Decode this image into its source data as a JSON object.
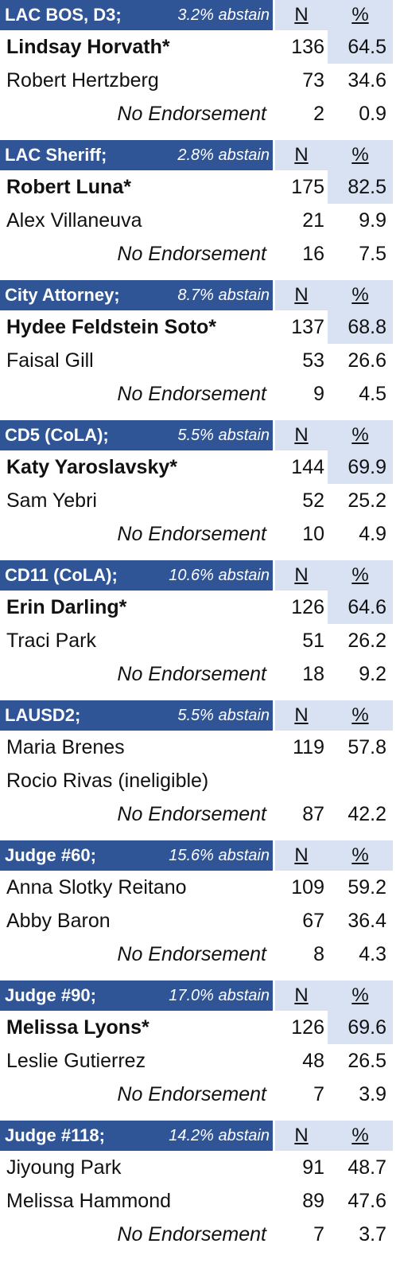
{
  "races": [
    {
      "title": "LAC BOS, D3;",
      "abstain": "3.2% abstain",
      "n_header": "N",
      "pct_header": "%",
      "rows": [
        {
          "name": "Lindsay Horvath*",
          "n": 136,
          "pct": 64.5,
          "bold": true,
          "highlight": true
        },
        {
          "name": "Robert Hertzberg",
          "n": 73,
          "pct": 34.6
        },
        {
          "name": "No Endorsement",
          "n": 2,
          "pct": 0.9,
          "italic": true
        }
      ]
    },
    {
      "title": "LAC Sheriff;",
      "abstain": "2.8% abstain",
      "n_header": "N",
      "pct_header": "%",
      "rows": [
        {
          "name": "Robert Luna*",
          "n": 175,
          "pct": 82.5,
          "bold": true,
          "highlight": true
        },
        {
          "name": "Alex Villaneuva",
          "n": 21,
          "pct": 9.9
        },
        {
          "name": "No Endorsement",
          "n": 16,
          "pct": 7.5,
          "italic": true
        }
      ]
    },
    {
      "title": "City Attorney;",
      "abstain": "8.7% abstain",
      "n_header": "N",
      "pct_header": "%",
      "rows": [
        {
          "name": "Hydee Feldstein Soto*",
          "n": 137,
          "pct": 68.8,
          "bold": true,
          "highlight": true
        },
        {
          "name": "Faisal Gill",
          "n": 53,
          "pct": 26.6
        },
        {
          "name": "No Endorsement",
          "n": 9,
          "pct": 4.5,
          "italic": true
        }
      ]
    },
    {
      "title": "CD5 (CoLA);",
      "abstain": "5.5% abstain",
      "n_header": "N",
      "pct_header": "%",
      "rows": [
        {
          "name": "Katy Yaroslavsky*",
          "n": 144,
          "pct": 69.9,
          "bold": true,
          "highlight": true
        },
        {
          "name": "Sam Yebri",
          "n": 52,
          "pct": 25.2
        },
        {
          "name": "No Endorsement",
          "n": 10,
          "pct": 4.9,
          "italic": true
        }
      ]
    },
    {
      "title": "CD11 (CoLA);",
      "abstain": "10.6% abstain",
      "n_header": "N",
      "pct_header": "%",
      "rows": [
        {
          "name": "Erin Darling*",
          "n": 126,
          "pct": 64.6,
          "bold": true,
          "highlight": true
        },
        {
          "name": "Traci Park",
          "n": 51,
          "pct": 26.2
        },
        {
          "name": "No Endorsement",
          "n": 18,
          "pct": 9.2,
          "italic": true
        }
      ]
    },
    {
      "title": "LAUSD2;",
      "abstain": "5.5% abstain",
      "n_header": "N",
      "pct_header": "%",
      "rows": [
        {
          "name": "Maria Brenes",
          "n": 119,
          "pct": 57.8
        },
        {
          "name": "Rocio Rivas (ineligible)"
        },
        {
          "name": "No Endorsement",
          "n": 87,
          "pct": 42.2,
          "italic": true
        }
      ]
    },
    {
      "title": "Judge #60;",
      "abstain": "15.6% abstain",
      "n_header": "N",
      "pct_header": "%",
      "rows": [
        {
          "name": "Anna Slotky Reitano",
          "n": 109,
          "pct": 59.2
        },
        {
          "name": "Abby Baron",
          "n": 67,
          "pct": 36.4
        },
        {
          "name": "No Endorsement",
          "n": 8,
          "pct": 4.3,
          "italic": true
        }
      ]
    },
    {
      "title": "Judge #90;",
      "abstain": "17.0% abstain",
      "n_header": "N",
      "pct_header": "%",
      "rows": [
        {
          "name": "Melissa Lyons*",
          "n": 126,
          "pct": 69.6,
          "bold": true,
          "highlight": true
        },
        {
          "name": "Leslie Gutierrez",
          "n": 48,
          "pct": 26.5
        },
        {
          "name": "No Endorsement",
          "n": 7,
          "pct": 3.9,
          "italic": true
        }
      ]
    },
    {
      "title": "Judge #118;",
      "abstain": "14.2% abstain",
      "n_header": "N",
      "pct_header": "%",
      "rows": [
        {
          "name": "Jiyoung Park",
          "n": 91,
          "pct": 48.7
        },
        {
          "name": "Melissa Hammond",
          "n": 89,
          "pct": 47.6
        },
        {
          "name": "No Endorsement",
          "n": 7,
          "pct": 3.7,
          "italic": true
        }
      ]
    }
  ]
}
